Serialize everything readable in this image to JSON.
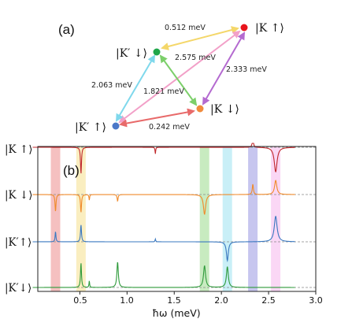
{
  "panel_a": {
    "label": "(a)",
    "states": [
      {
        "id": "K_up",
        "text": "|K ↑⟩",
        "color": "#e8141c"
      },
      {
        "id": "Kp_down",
        "text": "|K′ ↓⟩",
        "color": "#1fa64a"
      },
      {
        "id": "K_down",
        "text": "|K ↓⟩",
        "color": "#f08a3c"
      },
      {
        "id": "Kp_up",
        "text": "|K′ ↑⟩",
        "color": "#4b78c8"
      }
    ],
    "transitions": [
      {
        "from": "Kp_down",
        "to": "K_up",
        "energy": "0.512 meV",
        "color": "#f4d76a"
      },
      {
        "from": "Kp_up",
        "to": "K_up",
        "energy": "2.575 meV",
        "color": "#f2a0c8"
      },
      {
        "from": "K_down",
        "to": "K_up",
        "energy": "2.333 meV",
        "color": "#b46ad0"
      },
      {
        "from": "Kp_up",
        "to": "Kp_down",
        "energy": "2.063 meV",
        "color": "#7fd8ec"
      },
      {
        "from": "Kp_down",
        "to": "K_down",
        "energy": "1.821 meV",
        "color": "#7ccf6a"
      },
      {
        "from": "Kp_up",
        "to": "K_down",
        "energy": "0.242 meV",
        "color": "#e86a6a"
      }
    ]
  },
  "panel_b": {
    "label": "(b)",
    "row_labels": [
      "|K ↑⟩",
      "|K ↓⟩",
      "|K′↑⟩",
      "|K′↓⟩"
    ],
    "x_ticks": [
      "0.5",
      "1.0",
      "1.5",
      "2.0",
      "2.5",
      "3.0"
    ],
    "xlabel": "ħω (meV)"
  },
  "chart_data": {
    "type": "line",
    "xlabel": "ħω (meV)",
    "xlim": [
      0.0,
      3.0
    ],
    "x_ticks": [
      0.5,
      1.0,
      1.5,
      2.0,
      2.5,
      3.0
    ],
    "bands": [
      {
        "center": 0.242,
        "color": "#e86a6a"
      },
      {
        "center": 0.512,
        "color": "#f4d76a"
      },
      {
        "center": 1.821,
        "color": "#7ccf6a"
      },
      {
        "center": 2.063,
        "color": "#7fd8ec"
      },
      {
        "center": 2.333,
        "color": "#7a78d8"
      },
      {
        "center": 2.575,
        "color": "#f2a0e8"
      }
    ],
    "series": [
      {
        "row": 0,
        "color": "#c0282c",
        "features": [
          {
            "x": 0.512,
            "amp": -1.4,
            "w": 0.006
          },
          {
            "x": 1.3,
            "amp": -0.35,
            "w": 0.004
          },
          {
            "x": 2.333,
            "amp": 0.55,
            "w": 0.007
          },
          {
            "x": 2.575,
            "amp": -1.3,
            "w": 0.018
          }
        ]
      },
      {
        "row": 1,
        "color": "#f08a2a",
        "features": [
          {
            "x": 0.242,
            "amp": -0.9,
            "w": 0.006
          },
          {
            "x": 0.512,
            "amp": -0.95,
            "w": 0.006
          },
          {
            "x": 0.6,
            "amp": -0.3,
            "w": 0.004
          },
          {
            "x": 0.9,
            "amp": -0.35,
            "w": 0.006
          },
          {
            "x": 1.821,
            "amp": -1.05,
            "w": 0.014
          },
          {
            "x": 2.333,
            "amp": 0.55,
            "w": 0.007
          },
          {
            "x": 2.575,
            "amp": 0.75,
            "w": 0.014
          }
        ]
      },
      {
        "row": 2,
        "color": "#3a78c0",
        "features": [
          {
            "x": 0.242,
            "amp": 0.55,
            "w": 0.005
          },
          {
            "x": 0.512,
            "amp": 0.9,
            "w": 0.006
          },
          {
            "x": 1.3,
            "amp": 0.15,
            "w": 0.004
          },
          {
            "x": 2.063,
            "amp": -1.0,
            "w": 0.012
          },
          {
            "x": 2.575,
            "amp": 1.35,
            "w": 0.018
          }
        ]
      },
      {
        "row": 3,
        "color": "#2e9a3a",
        "features": [
          {
            "x": 0.512,
            "amp": 1.3,
            "w": 0.006
          },
          {
            "x": 0.6,
            "amp": 0.35,
            "w": 0.004
          },
          {
            "x": 0.9,
            "amp": 1.35,
            "w": 0.009
          },
          {
            "x": 1.821,
            "amp": 1.15,
            "w": 0.013
          },
          {
            "x": 2.063,
            "amp": 1.1,
            "w": 0.012
          }
        ]
      }
    ]
  }
}
